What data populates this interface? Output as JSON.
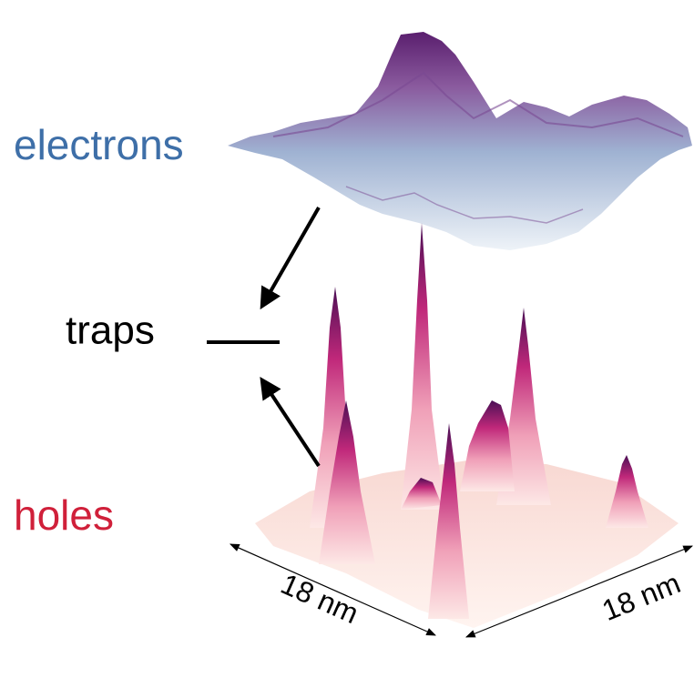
{
  "labels": {
    "electrons": "electrons",
    "traps": "traps",
    "holes": "holes"
  },
  "dimensions": [
    "18 nm",
    "18 nm"
  ]
}
